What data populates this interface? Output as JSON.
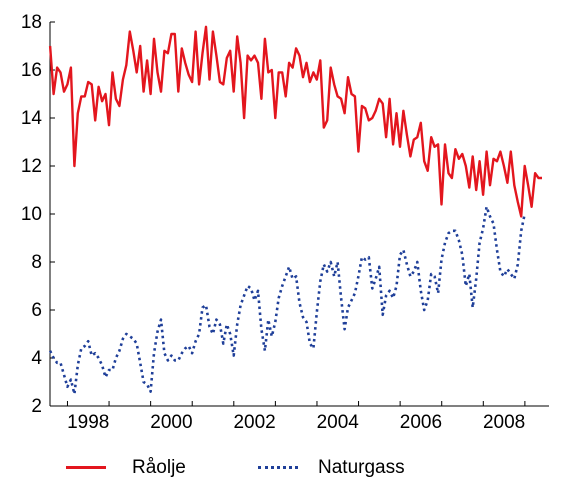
{
  "chart_data": {
    "type": "line",
    "title": "",
    "xlabel": "",
    "ylabel": "",
    "xlim": [
      1997.58,
      2009.58
    ],
    "ylim": [
      2,
      18
    ],
    "x_ticks": [
      1998,
      2000,
      2002,
      2004,
      2006,
      2008
    ],
    "y_ticks": [
      2,
      4,
      6,
      8,
      10,
      12,
      14,
      16,
      18
    ],
    "x_start": 1997.583,
    "x_step": 0.0833,
    "grid": false,
    "legend_position": "bottom",
    "series": [
      {
        "name": "Råolje",
        "color": "#e3161e",
        "style": "solid",
        "values": [
          17.0,
          15.0,
          16.1,
          15.9,
          15.1,
          15.4,
          16.1,
          12.0,
          14.2,
          14.9,
          14.9,
          15.5,
          15.4,
          13.9,
          15.3,
          14.7,
          15.0,
          13.7,
          15.9,
          14.8,
          14.5,
          15.6,
          16.2,
          17.6,
          16.8,
          15.9,
          17.0,
          15.1,
          16.4,
          15.0,
          17.3,
          15.9,
          15.1,
          16.8,
          16.7,
          17.5,
          17.5,
          15.1,
          16.9,
          16.3,
          15.8,
          15.5,
          17.6,
          15.4,
          16.7,
          17.8,
          15.6,
          17.6,
          16.6,
          15.5,
          15.4,
          16.5,
          16.8,
          15.1,
          17.4,
          16.3,
          14.0,
          16.6,
          16.4,
          16.6,
          16.3,
          14.8,
          17.3,
          15.9,
          16.0,
          14.0,
          15.9,
          15.9,
          14.9,
          16.3,
          16.1,
          16.9,
          16.6,
          15.7,
          16.3,
          15.5,
          15.9,
          15.6,
          16.4,
          13.6,
          13.9,
          16.1,
          15.4,
          14.9,
          14.8,
          14.2,
          15.7,
          15.0,
          14.9,
          12.6,
          14.5,
          14.4,
          13.9,
          14.0,
          14.3,
          14.8,
          14.6,
          13.2,
          14.8,
          12.9,
          14.2,
          12.8,
          14.3,
          13.3,
          12.4,
          13.1,
          13.2,
          13.8,
          12.2,
          11.8,
          13.2,
          12.8,
          12.9,
          10.4,
          12.9,
          11.7,
          11.5,
          12.7,
          12.3,
          12.5,
          12.0,
          11.1,
          12.4,
          11.0,
          12.2,
          10.8,
          12.6,
          11.2,
          12.3,
          12.2,
          12.6,
          12.0,
          11.3,
          12.6,
          11.2,
          10.5,
          9.9,
          12.0,
          11.2,
          10.3,
          11.7,
          11.5,
          11.5
        ]
      },
      {
        "name": "Naturgass",
        "color": "#1f3f99",
        "style": "dotted",
        "values": [
          4.3,
          4.0,
          3.8,
          3.8,
          3.3,
          2.8,
          3.1,
          2.5,
          3.7,
          4.4,
          4.5,
          4.7,
          4.1,
          4.2,
          4.0,
          3.7,
          3.2,
          3.5,
          3.5,
          4.0,
          4.3,
          4.8,
          5.0,
          4.9,
          4.8,
          4.6,
          3.8,
          3.0,
          2.9,
          2.6,
          4.2,
          5.1,
          5.6,
          4.2,
          3.9,
          4.1,
          3.9,
          3.9,
          4.2,
          4.4,
          4.5,
          4.2,
          4.7,
          5.0,
          6.1,
          6.2,
          5.3,
          5.0,
          5.6,
          5.4,
          4.6,
          5.4,
          5.0,
          4.1,
          5.4,
          6.2,
          6.6,
          7.0,
          6.9,
          6.4,
          6.8,
          5.2,
          4.3,
          5.6,
          4.9,
          5.5,
          6.5,
          7.0,
          7.4,
          7.8,
          7.3,
          7.4,
          6.3,
          5.7,
          5.5,
          4.6,
          4.4,
          5.9,
          7.2,
          7.9,
          7.6,
          8.0,
          7.4,
          8.0,
          6.5,
          5.2,
          6.1,
          6.4,
          6.7,
          7.4,
          8.2,
          8.1,
          8.2,
          6.9,
          7.3,
          7.8,
          5.8,
          6.6,
          6.8,
          6.5,
          7.0,
          8.3,
          8.5,
          7.9,
          7.4,
          7.6,
          8.0,
          6.8,
          6.0,
          6.4,
          7.5,
          7.4,
          6.7,
          8.1,
          8.8,
          9.2,
          9.3,
          9.3,
          8.9,
          8.3,
          7.0,
          7.5,
          6.1,
          7.3,
          8.8,
          9.4,
          10.3,
          9.9,
          9.6,
          8.5,
          7.6,
          7.4,
          7.7,
          7.5,
          7.3,
          7.9,
          9.3,
          10.0
        ]
      }
    ]
  }
}
